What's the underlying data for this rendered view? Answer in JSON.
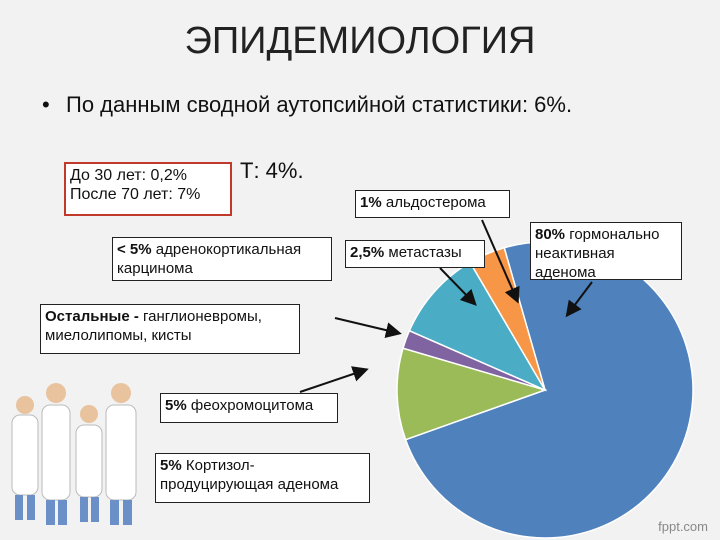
{
  "title": "ЭПИДЕМИОЛОГИЯ",
  "bullets": [
    "По данным сводной аутопсийной статистики: 6%.",
    "Т: 4%."
  ],
  "age_box": [
    "До 30 лет: 0,2%",
    "После 70 лет: 7%"
  ],
  "callouts": [
    {
      "bold": "1%",
      "text": "альдостерома"
    },
    {
      "bold": "80%",
      "text": "гормонально неактивная аденома"
    },
    {
      "bold": "< 5%",
      "text": "адренокортикальная карцинома"
    },
    {
      "bold": "2,5%",
      "text": "метастазы"
    },
    {
      "bold": "Остальные -",
      "text": "ганглионевромы, миелолипомы, кисты"
    },
    {
      "bold": "5%",
      "text": "феохромоцитома"
    },
    {
      "bold": "5%",
      "text": "Кортизол-продуцирующая аденома"
    }
  ],
  "watermark": "fppt.com",
  "chart_data": {
    "type": "pie",
    "values": [
      74,
      10,
      2,
      10,
      4
    ],
    "colors": [
      "#4f81bd",
      "#9bbb59",
      "#8064a2",
      "#4bacc6",
      "#f79646"
    ]
  }
}
